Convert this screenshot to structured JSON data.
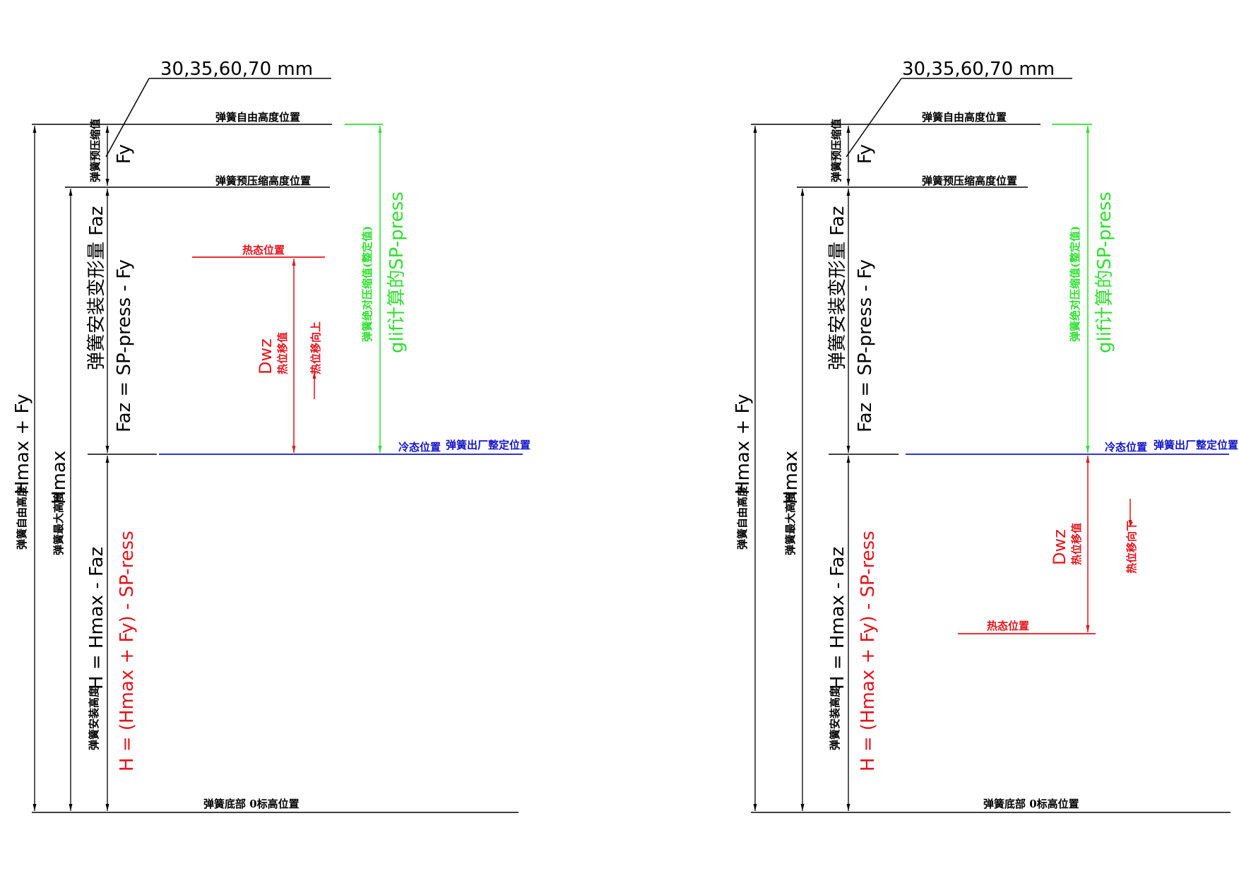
{
  "colors": {
    "black": "#000000",
    "red": "#e4141b",
    "green": "#2fe02f",
    "blue": "#1414c8"
  },
  "diagrams": [
    {
      "callout": "30,35,60,70 mm",
      "free_height_position": "弹簧自由高度位置",
      "preload_position": "弹簧预压缩高度位置",
      "hot_position": "热态位置",
      "cold_position": "冷态位置",
      "factory_position": "弹簧出厂整定位置",
      "bottom_zero": "弹簧底部 0标高位置",
      "preload_value_label": "弹簧预压缩值",
      "fy": "Fy",
      "install_deform_label": "弹簧安装变形量 Faz",
      "faz_formula": "Faz = SP-press - Fy",
      "install_height_label": "弹簧安装高度",
      "h_formula_black": "H = Hmax - Faz",
      "h_formula_red": "H = (Hmax + Fy) - SP-ress",
      "free_height_label": "弹簧自由高度",
      "free_height_formula": "Hmax + Fy",
      "max_height_label": "弹簧最大高度",
      "max_height_value": "Hmax",
      "dwz": "Dwz",
      "hot_disp_value": "热位移值",
      "hot_disp_dir": "热位移向上",
      "abs_compress_label": "弹簧绝对压缩值(整定值)",
      "glif_label": "glif计算的SP-press"
    },
    {
      "callout": "30,35,60,70 mm",
      "free_height_position": "弹簧自由高度位置",
      "preload_position": "弹簧预压缩高度位置",
      "hot_position": "热态位置",
      "cold_position": "冷态位置",
      "factory_position": "弹簧出厂整定位置",
      "bottom_zero": "弹簧底部 0标高位置",
      "preload_value_label": "弹簧预压缩值",
      "fy": "Fy",
      "install_deform_label": "弹簧安装变形量 Faz",
      "faz_formula": "Faz = SP-press - Fy",
      "install_height_label": "弹簧安装高度",
      "h_formula_black": "H = Hmax - Faz",
      "h_formula_red": "H = (Hmax + Fy) - SP-ress",
      "free_height_label": "弹簧自由高度",
      "free_height_formula": "Hmax + Fy",
      "max_height_label": "弹簧最大高度",
      "max_height_value": "Hmax",
      "dwz": "Dwz",
      "hot_disp_value": "热位移值",
      "hot_disp_dir": "热位移向下",
      "abs_compress_label": "弹簧绝对压缩值(整定值)",
      "glif_label": "glif计算的SP-press"
    }
  ]
}
